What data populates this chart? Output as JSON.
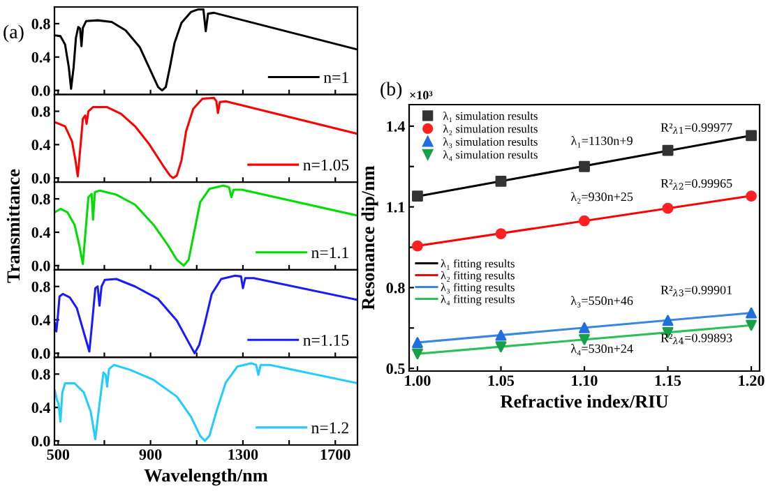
{
  "chart_data": [
    {
      "type": "line",
      "annotations": [
        "(a)"
      ],
      "xlim": [
        484,
        1796
      ],
      "ylim": [
        -0.05,
        1.0
      ],
      "xticks": [
        500,
        {
          "value": 700,
          "label": null
        },
        900,
        {
          "value": 1100,
          "label": null
        },
        1300,
        {
          "value": 1500,
          "label": null
        },
        1700
      ],
      "yticks": [
        {
          "value": 0,
          "label": "0.0"
        },
        0.4,
        0.8
      ],
      "tick_labels": "y",
      "legend": "bottom right",
      "series": [
        {
          "name": "n=1",
          "color": "#000000",
          "x": [
            486,
            510,
            530,
            546,
            556,
            567,
            577,
            587,
            595,
            601,
            607,
            621,
            671,
            732,
            792,
            853,
            903,
            933,
            950,
            966,
            984,
            1004,
            1034,
            1075,
            1105,
            1129,
            1139,
            1149,
            1175,
            1796
          ],
          "values": [
            0.66,
            0.65,
            0.55,
            0.28,
            0.02,
            0.28,
            0.63,
            0.76,
            0.74,
            0.53,
            0.75,
            0.83,
            0.84,
            0.82,
            0.72,
            0.52,
            0.22,
            0.04,
            0.0,
            0.04,
            0.28,
            0.57,
            0.81,
            0.94,
            0.97,
            0.97,
            0.71,
            0.92,
            0.93,
            0.49
          ]
        }
      ]
    },
    {
      "type": "line",
      "xlim": [
        484,
        1796
      ],
      "ylim": [
        -0.05,
        1.0
      ],
      "xticks": [
        500,
        {
          "value": 700,
          "label": null
        },
        900,
        {
          "value": 1100,
          "label": null
        },
        1300,
        {
          "value": 1500,
          "label": null
        },
        1700
      ],
      "yticks": [
        {
          "value": 0,
          "label": "0.0"
        },
        0.4,
        0.8
      ],
      "tick_labels": "y",
      "legend": "bottom right",
      "series": [
        {
          "name": "n=1.05",
          "color": "#ff0000",
          "x": [
            486,
            530,
            560,
            575,
            585,
            595,
            607,
            617,
            623,
            631,
            651,
            712,
            772,
            833,
            893,
            954,
            984,
            998,
            1014,
            1034,
            1054,
            1085,
            1125,
            1175,
            1185,
            1192,
            1200,
            1226,
            1796
          ],
          "values": [
            0.67,
            0.62,
            0.44,
            0.21,
            0.02,
            0.33,
            0.71,
            0.75,
            0.65,
            0.8,
            0.85,
            0.85,
            0.77,
            0.62,
            0.41,
            0.15,
            0.03,
            0.0,
            0.03,
            0.21,
            0.56,
            0.83,
            0.95,
            0.96,
            0.92,
            0.78,
            0.91,
            0.92,
            0.53
          ]
        }
      ]
    },
    {
      "type": "line",
      "ylabel": "Transmittance",
      "xlim": [
        484,
        1796
      ],
      "ylim": [
        -0.05,
        1.0
      ],
      "xticks": [
        500,
        {
          "value": 700,
          "label": null
        },
        900,
        {
          "value": 1100,
          "label": null
        },
        1300,
        {
          "value": 1500,
          "label": null
        },
        1700
      ],
      "yticks": [
        {
          "value": 0,
          "label": "0.0"
        },
        0.4,
        0.8
      ],
      "tick_labels": "y",
      "legend": "bottom right",
      "series": [
        {
          "name": "n=1.1",
          "color": "#00dd00",
          "x": [
            486,
            510,
            540,
            571,
            591,
            607,
            621,
            631,
            645,
            651,
            659,
            681,
            752,
            833,
            913,
            974,
            1014,
            1044,
            1065,
            1091,
            1115,
            1155,
            1216,
            1240,
            1250,
            1260,
            1296,
            1796
          ],
          "values": [
            0.64,
            0.68,
            0.64,
            0.49,
            0.25,
            0.02,
            0.49,
            0.82,
            0.86,
            0.55,
            0.88,
            0.9,
            0.85,
            0.73,
            0.49,
            0.25,
            0.07,
            0.0,
            0.07,
            0.43,
            0.76,
            0.92,
            0.96,
            0.94,
            0.82,
            0.91,
            0.91,
            0.6
          ]
        }
      ]
    },
    {
      "type": "line",
      "xlim": [
        484,
        1796
      ],
      "ylim": [
        -0.05,
        1.0
      ],
      "xticks": [
        500,
        {
          "value": 700,
          "label": null
        },
        900,
        {
          "value": 1100,
          "label": null
        },
        1300,
        {
          "value": 1500,
          "label": null
        },
        1700
      ],
      "yticks": [
        {
          "value": 0,
          "label": "0.0"
        },
        0.4,
        0.8
      ],
      "tick_labels": "y",
      "legend": "bottom right",
      "series": [
        {
          "name": "n=1.15",
          "color": "#1a1aff",
          "x": [
            486,
            492,
            498,
            506,
            520,
            550,
            581,
            611,
            635,
            647,
            661,
            671,
            679,
            688,
            702,
            752,
            833,
            933,
            1014,
            1065,
            1091,
            1111,
            1135,
            1165,
            1206,
            1266,
            1292,
            1300,
            1310,
            1347,
            1796
          ],
          "values": [
            0.36,
            0.26,
            0.42,
            0.68,
            0.71,
            0.67,
            0.54,
            0.25,
            0.02,
            0.36,
            0.78,
            0.8,
            0.57,
            0.8,
            0.88,
            0.89,
            0.8,
            0.65,
            0.39,
            0.13,
            0.0,
            0.1,
            0.36,
            0.71,
            0.89,
            0.93,
            0.92,
            0.78,
            0.9,
            0.9,
            0.64
          ]
        }
      ]
    },
    {
      "type": "line",
      "xlabel": "Wavelength/nm",
      "xlim": [
        484,
        1796
      ],
      "ylim": [
        -0.05,
        1.0
      ],
      "xticks": [
        500,
        {
          "value": 700,
          "label": null
        },
        900,
        {
          "value": 1100,
          "label": null
        },
        1300,
        {
          "value": 1500,
          "label": null
        },
        1700
      ],
      "yticks": [
        {
          "value": 0,
          "label": "0.0"
        },
        0.4,
        0.8
      ],
      "legend": "bottom right",
      "series": [
        {
          "name": "n=1.2",
          "color": "#22ccff",
          "x": [
            486,
            494,
            502,
            510,
            518,
            530,
            571,
            611,
            641,
            661,
            675,
            696,
            706,
            712,
            720,
            742,
            813,
            913,
            1014,
            1075,
            1115,
            1135,
            1155,
            1185,
            1226,
            1276,
            1337,
            1357,
            1367,
            1377,
            1417,
            1796
          ],
          "values": [
            0.6,
            0.5,
            0.44,
            0.23,
            0.58,
            0.69,
            0.69,
            0.58,
            0.35,
            0.02,
            0.35,
            0.82,
            0.79,
            0.65,
            0.86,
            0.91,
            0.85,
            0.73,
            0.53,
            0.29,
            0.06,
            0.0,
            0.06,
            0.35,
            0.7,
            0.89,
            0.93,
            0.91,
            0.79,
            0.91,
            0.91,
            0.69
          ]
        }
      ]
    },
    {
      "type": "scatter",
      "xlabel": "Refractive index/RIU",
      "ylabel": "Resonance dip/nm",
      "annotations": [
        "(b)",
        "×10³",
        "λ₁=1130n+9",
        "R²$_{λ1}$=0.99977",
        "λ₂=930n+25",
        "R²$_{λ2}$=0.99965",
        "λ₃=550n+46",
        "R²$_{λ3}$=0.99901",
        "λ₄=530n+24",
        "R²$_{λ4}$=0.99893"
      ],
      "x": [
        1.0,
        1.05,
        1.1,
        1.15,
        1.2
      ],
      "xlim": [
        0.995,
        1.205
      ],
      "ylim": [
        0.49,
        1.48
      ],
      "xticks": [
        {
          "value": 1.0,
          "label": "1.00"
        },
        1.05,
        {
          "value": 1.1,
          "label": "1.10"
        },
        1.15,
        {
          "value": 1.2,
          "label": "1.20"
        }
      ],
      "yticks": [
        0.5,
        {
          "value": 0.65,
          "label": null
        },
        0.8,
        {
          "value": 0.95,
          "label": null
        },
        1.1,
        {
          "value": 1.25,
          "label": null
        },
        1.4
      ],
      "legend": "top left",
      "series": [
        {
          "name": "λ₁ simulation results",
          "color": "#333333",
          "marker": "square",
          "values": [
            1.14,
            1.195,
            1.25,
            1.31,
            1.365
          ]
        },
        {
          "name": "λ₂ simulation results",
          "color": "#ff2020",
          "marker": "circle",
          "values": [
            0.955,
            1.0,
            1.048,
            1.095,
            1.14
          ]
        },
        {
          "name": "λ₃ simulation results",
          "color": "#1f6fe0",
          "marker": "triangle",
          "values": [
            0.596,
            0.623,
            0.651,
            0.678,
            0.706
          ]
        },
        {
          "name": "λ₄ simulation results",
          "color": "#18a048",
          "marker": "triangle_down",
          "values": [
            0.554,
            0.58,
            0.607,
            0.633,
            0.66
          ]
        },
        {
          "name": "λ₁ fitting results",
          "type": "line",
          "color": "#000000",
          "x": [
            1.0,
            1.2
          ],
          "values": [
            1.139,
            1.365
          ]
        },
        {
          "name": "λ₂ fitting results",
          "type": "line",
          "color": "#ff0000",
          "x": [
            1.0,
            1.2
          ],
          "values": [
            0.955,
            1.141
          ]
        },
        {
          "name": "λ₃ fitting results",
          "type": "line",
          "color": "#3a86e0",
          "x": [
            1.0,
            1.2
          ],
          "values": [
            0.596,
            0.706
          ]
        },
        {
          "name": "λ₄ fitting results",
          "type": "line",
          "color": "#2cbf5a",
          "x": [
            1.0,
            1.2
          ],
          "values": [
            0.554,
            0.66
          ]
        }
      ]
    }
  ]
}
